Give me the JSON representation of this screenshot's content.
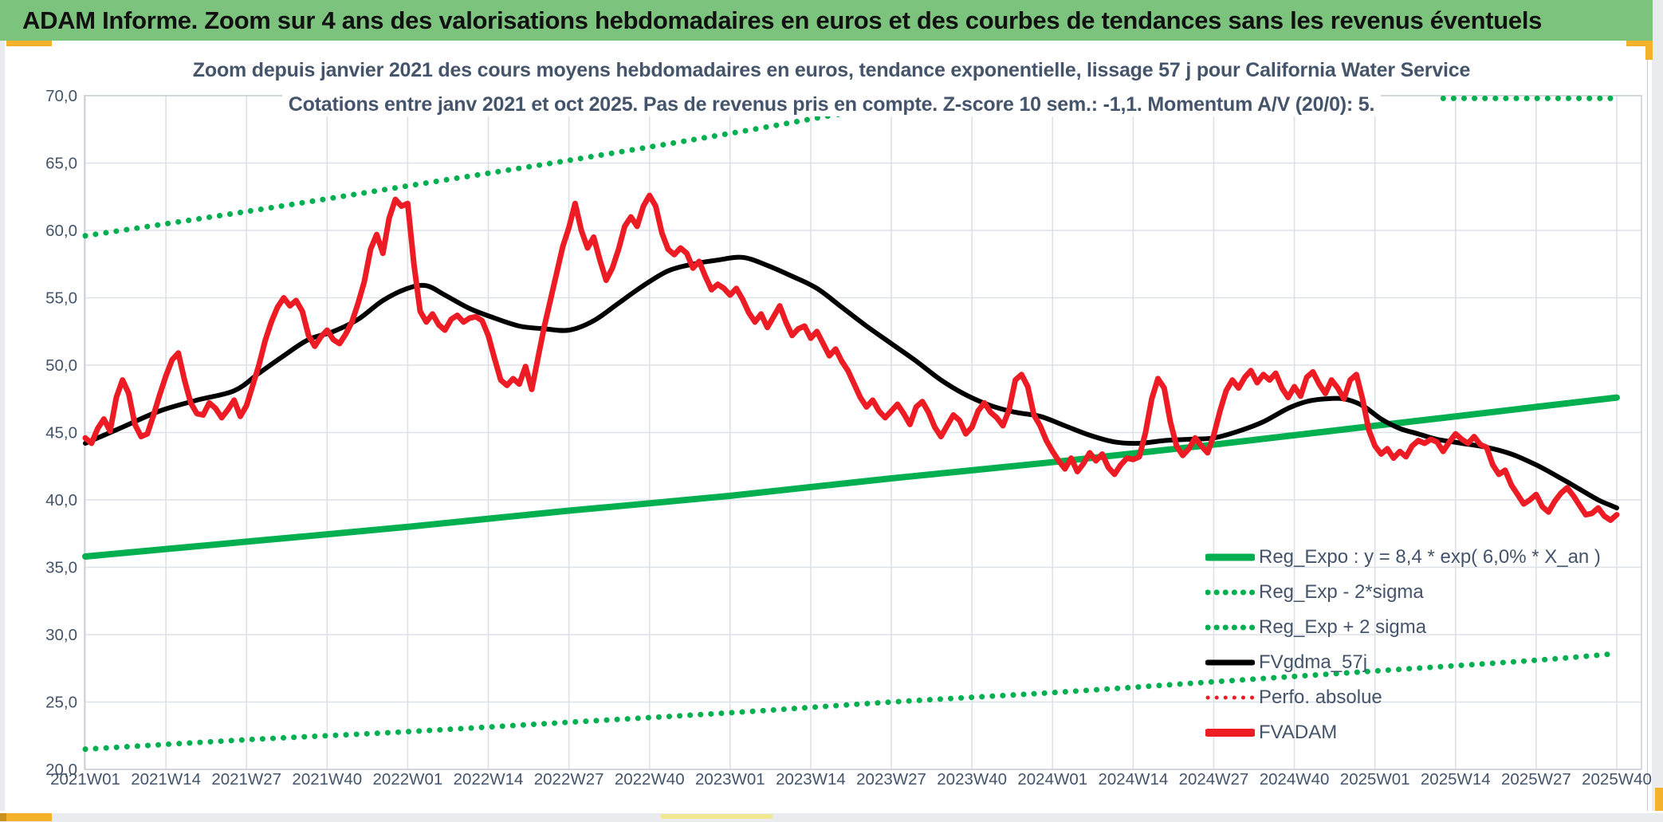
{
  "banner": {
    "text": "ADAM Informe. Zoom sur 4 ans des valorisations hebdomadaires en euros et des courbes de tendances sans les revenus éventuels"
  },
  "chart": {
    "title_line1": "Zoom depuis janvier 2021 des cours moyens hebdomadaires en euros, tendance exponentielle, lissage 57 j pour California Water Service",
    "title_line2": "Cotations entre janv 2021 et oct 2025. Pas de revenus pris en compte. Z-score 10 sem.: -1,1. Momentum A/V (20/0): 5."
  },
  "colors": {
    "banner_green": "#7CC47E",
    "line_green": "#00B050",
    "line_red": "#ED1C24",
    "line_black": "#000000",
    "text_slate": "#44546A",
    "gridline": "#DDE1E7",
    "plot_border": "#C9CED6",
    "frame_gray": "#E9EBEE",
    "gold": "#F3B229",
    "dark_gold": "#C9921E",
    "pale_yellow": "#F0E992"
  },
  "legend": [
    {
      "label": "Reg_Expo : y = 8,4 * exp( 6,0% *  X_an )",
      "color": "#00B050",
      "style": "solid",
      "weight": 9
    },
    {
      "label": "Reg_Exp - 2*sigma",
      "color": "#00B050",
      "style": "dotted",
      "weight": 7
    },
    {
      "label": "Reg_Exp + 2 sigma",
      "color": "#00B050",
      "style": "dotted",
      "weight": 7
    },
    {
      "label": "FVgdma_57j",
      "color": "#000000",
      "style": "solid",
      "weight": 7
    },
    {
      "label": "Perfo. absolue",
      "color": "#ED1C24",
      "style": "dotted",
      "weight": 5
    },
    {
      "label": "FVADAM",
      "color": "#ED1C24",
      "style": "solid",
      "weight": 10
    }
  ],
  "chart_data": {
    "type": "line",
    "title": "Zoom depuis janvier 2021 des cours moyens hebdomadaires en euros, tendance exponentielle, lissage 57 j pour California Water Service",
    "subtitle": "Cotations entre janv 2021 et oct 2025. Pas de revenus pris en compte. Z-score 10 sem.: -1,1. Momentum A/V (20/0): 5.",
    "x_unit": "week index from 2021W01, one point per week",
    "weeks_per_tick": 13,
    "total_weeks": 248,
    "x_ticks": [
      "2021W01",
      "2021W14",
      "2021W27",
      "2021W40",
      "2022W01",
      "2022W14",
      "2022W27",
      "2022W40",
      "2023W01",
      "2023W14",
      "2023W27",
      "2023W40",
      "2024W01",
      "2024W14",
      "2024W27",
      "2024W40",
      "2025W01",
      "2025W14",
      "2025W27",
      "2025W40"
    ],
    "ylim": [
      20,
      70
    ],
    "y_tick_step": 5,
    "y_tick_labels": [
      "70,0",
      "65,0",
      "60,0",
      "55,0",
      "50,0",
      "45,0",
      "40,0",
      "35,0",
      "30,0",
      "25,0",
      "20,0"
    ],
    "grid": true,
    "legend_position": "inside-lower-right",
    "series": [
      {
        "name": "Reg_Exp + 2 sigma",
        "color": "#00B050",
        "style": "dotted",
        "width": 7,
        "note": "upper band exits plot top (70) around week 139; values beyond axis max rendered clipped flat just under 70,0 from week 219 to 246",
        "segments": [
          {
            "anchors": [
              [
                0,
                59.6
              ],
              [
                26,
                61.4
              ],
              [
                52,
                63.3
              ],
              [
                78,
                65.2
              ],
              [
                104,
                67.2
              ],
              [
                120,
                68.5
              ],
              [
                132,
                69.4
              ],
              [
                139,
                70.0
              ]
            ]
          },
          {
            "anchors": [
              [
                219,
                69.8
              ],
              [
                246,
                69.8
              ]
            ]
          }
        ]
      },
      {
        "name": "Reg_Exp - 2*sigma",
        "color": "#00B050",
        "style": "dotted",
        "width": 7,
        "anchors": [
          [
            0,
            21.5
          ],
          [
            26,
            22.2
          ],
          [
            52,
            22.8
          ],
          [
            78,
            23.5
          ],
          [
            104,
            24.2
          ],
          [
            130,
            25.0
          ],
          [
            156,
            25.7
          ],
          [
            182,
            26.5
          ],
          [
            208,
            27.3
          ],
          [
            234,
            28.1
          ],
          [
            247,
            28.6
          ]
        ]
      },
      {
        "name": "Reg_Expo",
        "formula": "y = 8,4 * exp( 6,0% *  X_an )",
        "color": "#00B050",
        "style": "solid",
        "width": 8,
        "anchors": [
          [
            0,
            35.8
          ],
          [
            26,
            36.9
          ],
          [
            52,
            38.0
          ],
          [
            78,
            39.2
          ],
          [
            104,
            40.3
          ],
          [
            130,
            41.6
          ],
          [
            156,
            42.8
          ],
          [
            182,
            44.1
          ],
          [
            208,
            45.5
          ],
          [
            234,
            46.9
          ],
          [
            247,
            47.6
          ]
        ]
      },
      {
        "name": "Perfo. absolue",
        "color": "#ED1C24",
        "style": "dotted",
        "width": 4,
        "same_as": "FVADAM",
        "note": "coincides with FVADAM (no revenues taken into account), hidden beneath it"
      },
      {
        "name": "FVgdma_57j",
        "color": "#000000",
        "style": "solid",
        "width": 6,
        "anchors": [
          [
            0,
            44.2
          ],
          [
            6,
            45.4
          ],
          [
            12,
            46.6
          ],
          [
            18,
            47.4
          ],
          [
            24,
            48.1
          ],
          [
            28,
            49.4
          ],
          [
            32,
            50.7
          ],
          [
            36,
            51.9
          ],
          [
            40,
            52.5
          ],
          [
            44,
            53.4
          ],
          [
            48,
            54.8
          ],
          [
            52,
            55.7
          ],
          [
            55,
            55.9
          ],
          [
            58,
            55.2
          ],
          [
            62,
            54.2
          ],
          [
            66,
            53.5
          ],
          [
            70,
            52.9
          ],
          [
            74,
            52.7
          ],
          [
            78,
            52.6
          ],
          [
            82,
            53.3
          ],
          [
            86,
            54.6
          ],
          [
            90,
            55.9
          ],
          [
            94,
            57.0
          ],
          [
            98,
            57.5
          ],
          [
            102,
            57.8
          ],
          [
            106,
            58.0
          ],
          [
            110,
            57.4
          ],
          [
            114,
            56.6
          ],
          [
            118,
            55.7
          ],
          [
            122,
            54.3
          ],
          [
            126,
            52.9
          ],
          [
            130,
            51.6
          ],
          [
            134,
            50.3
          ],
          [
            138,
            48.9
          ],
          [
            142,
            47.8
          ],
          [
            146,
            47.0
          ],
          [
            150,
            46.5
          ],
          [
            154,
            46.2
          ],
          [
            158,
            45.5
          ],
          [
            162,
            44.8
          ],
          [
            166,
            44.3
          ],
          [
            170,
            44.2
          ],
          [
            174,
            44.4
          ],
          [
            178,
            44.5
          ],
          [
            182,
            44.6
          ],
          [
            186,
            45.1
          ],
          [
            190,
            45.8
          ],
          [
            194,
            46.8
          ],
          [
            197,
            47.3
          ],
          [
            200,
            47.5
          ],
          [
            203,
            47.5
          ],
          [
            206,
            47.0
          ],
          [
            209,
            46.0
          ],
          [
            212,
            45.3
          ],
          [
            215,
            44.9
          ],
          [
            218,
            44.5
          ],
          [
            222,
            44.2
          ],
          [
            226,
            43.9
          ],
          [
            230,
            43.4
          ],
          [
            234,
            42.6
          ],
          [
            238,
            41.6
          ],
          [
            241,
            40.8
          ],
          [
            244,
            40.0
          ],
          [
            246,
            39.6
          ],
          [
            247,
            39.4
          ]
        ]
      },
      {
        "name": "FVADAM",
        "color": "#ED1C24",
        "style": "solid",
        "width": 7,
        "values": [
          44.6,
          44.2,
          45.3,
          46.0,
          45.1,
          47.6,
          48.9,
          47.9,
          45.6,
          44.7,
          44.9,
          46.3,
          47.8,
          49.2,
          50.4,
          50.9,
          48.9,
          47.2,
          46.4,
          46.3,
          47.2,
          46.8,
          46.1,
          46.7,
          47.4,
          46.2,
          47.0,
          48.5,
          50.0,
          51.8,
          53.2,
          54.3,
          55.0,
          54.4,
          54.8,
          54.0,
          52.2,
          51.4,
          52.1,
          52.6,
          51.9,
          51.6,
          52.3,
          53.2,
          54.6,
          56.2,
          58.6,
          59.7,
          58.3,
          60.9,
          62.3,
          61.8,
          62.0,
          57.5,
          54.0,
          53.2,
          53.8,
          53.0,
          52.6,
          53.4,
          53.7,
          53.2,
          53.5,
          53.6,
          53.3,
          52.2,
          50.5,
          48.9,
          48.5,
          49.0,
          48.6,
          49.9,
          48.2,
          50.5,
          52.8,
          54.8,
          56.8,
          58.8,
          60.2,
          62.0,
          60.0,
          58.7,
          59.5,
          57.8,
          56.3,
          57.2,
          58.6,
          60.3,
          61.0,
          60.3,
          61.8,
          62.6,
          61.8,
          59.8,
          58.6,
          58.2,
          58.7,
          58.3,
          57.2,
          57.7,
          56.6,
          55.6,
          56.0,
          55.7,
          55.2,
          55.7,
          54.9,
          53.9,
          53.2,
          53.8,
          52.8,
          53.6,
          54.4,
          53.2,
          52.2,
          52.7,
          52.9,
          52.0,
          52.5,
          51.6,
          50.7,
          51.2,
          50.3,
          49.6,
          48.6,
          47.6,
          46.9,
          47.4,
          46.6,
          46.1,
          46.6,
          47.1,
          46.4,
          45.6,
          46.9,
          47.3,
          46.5,
          45.4,
          44.7,
          45.5,
          46.3,
          45.9,
          44.9,
          45.4,
          46.6,
          47.2,
          46.5,
          46.1,
          45.5,
          46.7,
          48.9,
          49.3,
          48.4,
          46.3,
          45.5,
          44.4,
          43.6,
          42.9,
          42.3,
          43.1,
          42.1,
          42.7,
          43.5,
          42.9,
          43.4,
          42.4,
          41.9,
          42.6,
          43.1,
          43.0,
          43.2,
          45.0,
          47.5,
          49.0,
          48.3,
          45.8,
          44.0,
          43.3,
          43.8,
          44.6,
          44.0,
          43.5,
          44.8,
          46.6,
          48.1,
          48.9,
          48.3,
          49.1,
          49.6,
          48.7,
          49.3,
          48.9,
          49.4,
          48.3,
          47.6,
          48.4,
          47.7,
          49.1,
          49.5,
          48.6,
          47.9,
          48.9,
          48.3,
          47.5,
          48.9,
          49.3,
          47.5,
          45.2,
          44.0,
          43.4,
          43.8,
          43.1,
          43.6,
          43.2,
          44.0,
          44.4,
          44.2,
          44.5,
          44.3,
          43.6,
          44.3,
          44.9,
          44.5,
          44.2,
          44.7,
          44.1,
          43.9,
          42.6,
          41.9,
          42.2,
          41.1,
          40.4,
          39.7,
          40.0,
          40.4,
          39.5,
          39.1,
          39.9,
          40.5,
          40.9,
          40.3,
          39.6,
          38.9,
          39.0,
          39.4,
          38.8,
          38.5,
          38.9
        ]
      }
    ]
  }
}
